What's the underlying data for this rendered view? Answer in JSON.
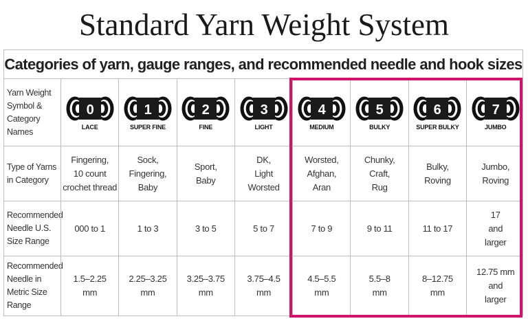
{
  "title": "Standard Yarn Weight System",
  "subtitle": "Categories of yarn, gauge ranges, and recommended needle and hook sizes",
  "highlight_color": "#d1146b",
  "row_labels": [
    "Yarn Weight Symbol & Category Names",
    "Type of Yarns in Category",
    "Recommended Needle U.S. Size Range",
    "Recommended Needle in Metric Size Range"
  ],
  "categories": [
    {
      "number": "0",
      "name": "LACE",
      "types": [
        "Fingering,",
        "10 count",
        "crochet thread"
      ],
      "us": [
        "000 to 1"
      ],
      "metric": [
        "1.5–2.25",
        "mm"
      ]
    },
    {
      "number": "1",
      "name": "SUPER FINE",
      "types": [
        "Sock,",
        "Fingering,",
        "Baby"
      ],
      "us": [
        "1 to 3"
      ],
      "metric": [
        "2.25–3.25",
        "mm"
      ]
    },
    {
      "number": "2",
      "name": "FINE",
      "types": [
        "Sport,",
        "Baby"
      ],
      "us": [
        "3 to 5"
      ],
      "metric": [
        "3.25–3.75",
        "mm"
      ]
    },
    {
      "number": "3",
      "name": "LIGHT",
      "types": [
        "DK,",
        "Light",
        "Worsted"
      ],
      "us": [
        "5 to 7"
      ],
      "metric": [
        "3.75–4.5",
        "mm"
      ]
    },
    {
      "number": "4",
      "name": "MEDIUM",
      "types": [
        "Worsted,",
        "Afghan,",
        "Aran"
      ],
      "us": [
        "7 to 9"
      ],
      "metric": [
        "4.5–5.5",
        "mm"
      ]
    },
    {
      "number": "5",
      "name": "BULKY",
      "types": [
        "Chunky,",
        "Craft,",
        "Rug"
      ],
      "us": [
        "9 to 11"
      ],
      "metric": [
        "5.5–8",
        "mm"
      ]
    },
    {
      "number": "6",
      "name": "SUPER BULKY",
      "types": [
        "Bulky,",
        "Roving"
      ],
      "us": [
        "11 to 17"
      ],
      "metric": [
        "8–12.75",
        "mm"
      ]
    },
    {
      "number": "7",
      "name": "JUMBO",
      "types": [
        "Jumbo,",
        "Roving"
      ],
      "us": [
        "17",
        "and",
        "larger"
      ],
      "metric": [
        "12.75 mm",
        "and",
        "larger"
      ]
    }
  ]
}
